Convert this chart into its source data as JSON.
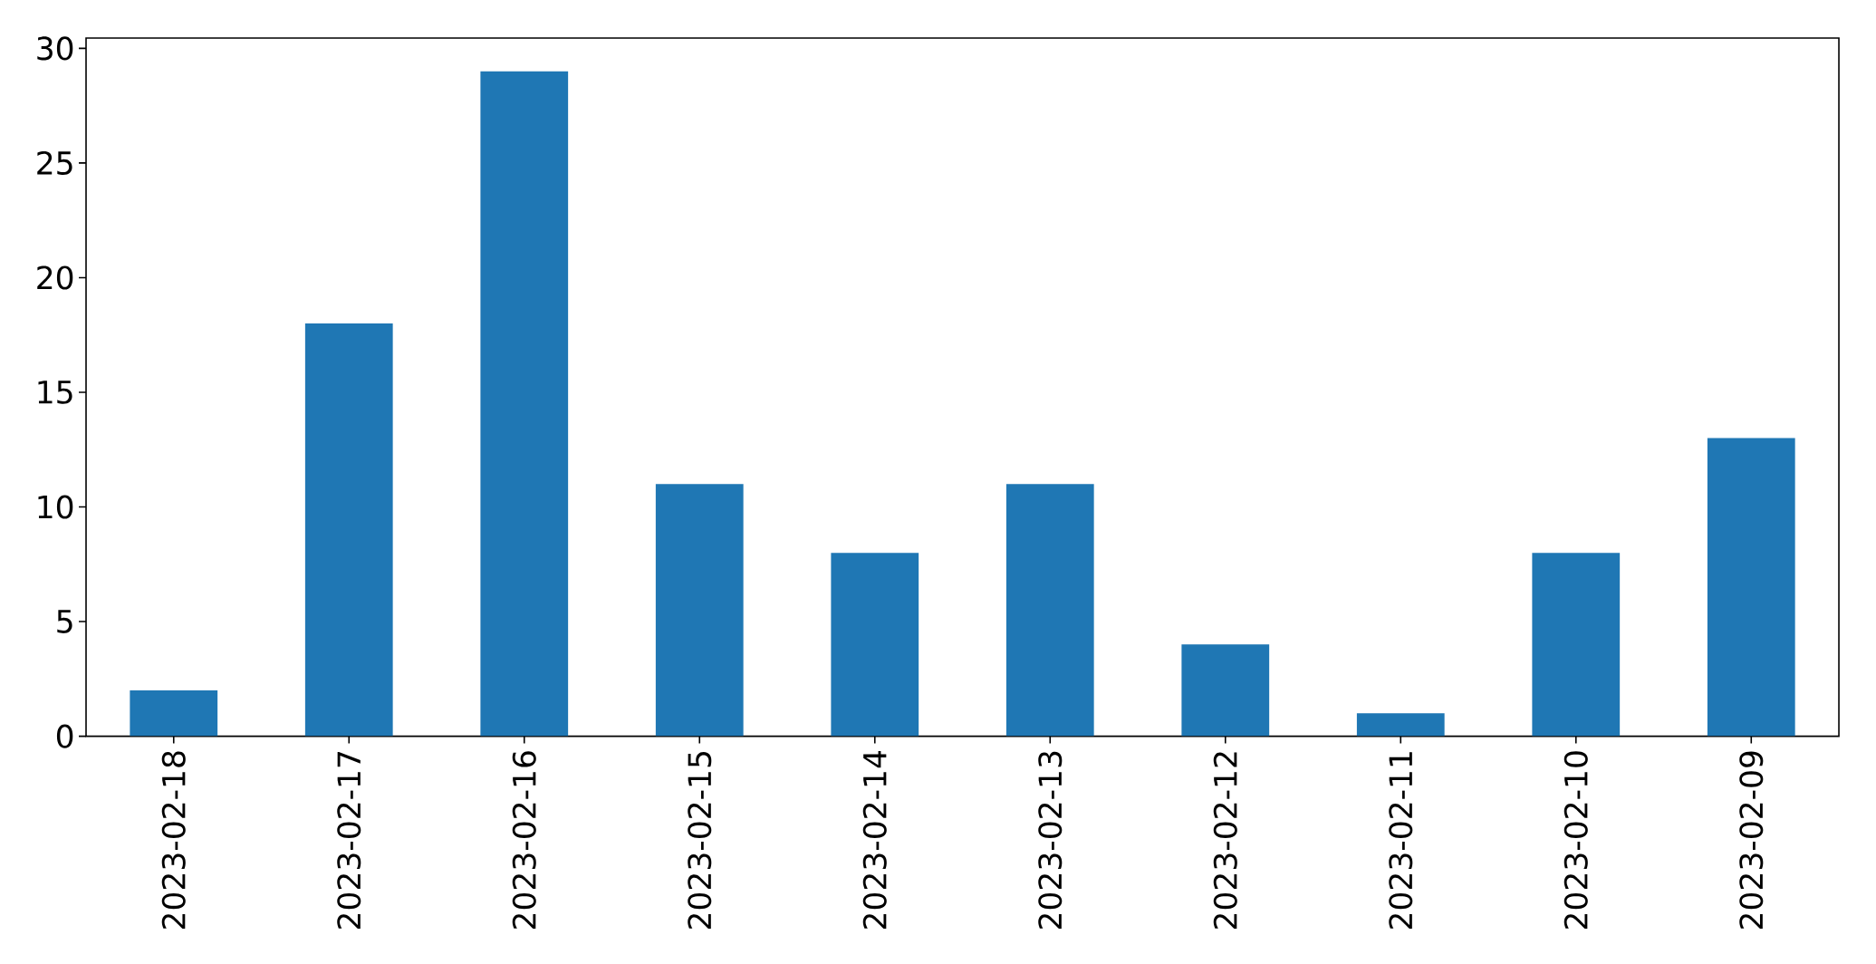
{
  "chart_data": {
    "type": "bar",
    "categories": [
      "2023-02-18",
      "2023-02-17",
      "2023-02-16",
      "2023-02-15",
      "2023-02-14",
      "2023-02-13",
      "2023-02-12",
      "2023-02-11",
      "2023-02-10",
      "2023-02-09"
    ],
    "values": [
      2,
      18,
      29,
      11,
      8,
      11,
      4,
      1,
      8,
      13
    ],
    "color": "#1f77b4",
    "ylim": [
      0,
      30.45
    ],
    "yticks": [
      0,
      5,
      10,
      15,
      20,
      25,
      30
    ]
  }
}
